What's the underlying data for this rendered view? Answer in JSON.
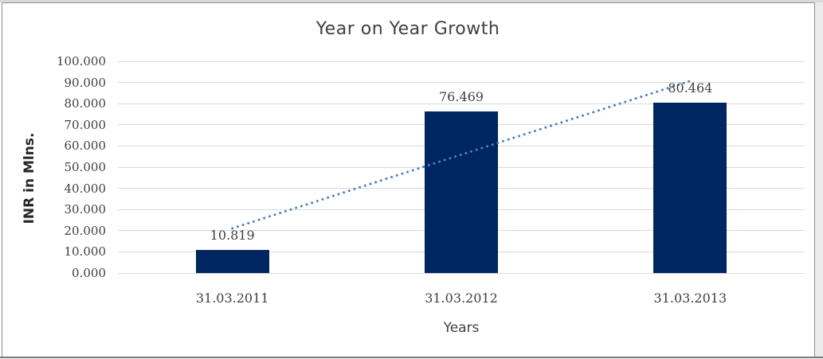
{
  "chart_data": {
    "type": "bar",
    "title": "Year on Year Growth",
    "xlabel": "Years",
    "ylabel": "INR in Mlns.",
    "categories": [
      "31.03.2011",
      "31.03.2012",
      "31.03.2013"
    ],
    "values": [
      10.819,
      76.469,
      80.464
    ],
    "data_labels": [
      "10.819",
      "76.469",
      "80.464"
    ],
    "ylim": [
      0,
      100
    ],
    "yticks": [
      0,
      10,
      20,
      30,
      40,
      50,
      60,
      70,
      80,
      90,
      100
    ],
    "ytick_labels": [
      "0.000",
      "10.000",
      "20.000",
      "30.000",
      "40.000",
      "50.000",
      "60.000",
      "70.000",
      "80.000",
      "90.000",
      "100.000"
    ],
    "grid": true,
    "legend": false,
    "trendline": {
      "style": "dotted",
      "start_value": 21.1,
      "end_value": 90.7,
      "color": "#4D81BE"
    },
    "colors": {
      "bar": "#002661",
      "gridline": "#D9D9D9",
      "title_text": "#404040",
      "tick_text": "#404040",
      "axis_title_text": "#262626"
    }
  }
}
